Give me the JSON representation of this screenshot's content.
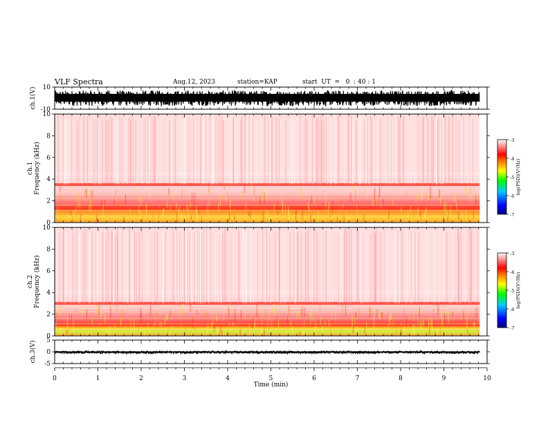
{
  "header": {
    "title": "VLF Spectra",
    "date": "Aug.12, 2023",
    "station": "station=KAP",
    "start": "start  UT  =   0  : 40 : 1"
  },
  "chart_data": [
    {
      "type": "line",
      "panel": "ch1-waveform",
      "ylabel": "ch.1(V)",
      "ylim": [
        -10,
        10
      ],
      "yticks": [
        "10",
        "-10"
      ],
      "xlim": [
        0,
        10
      ],
      "data_xrange": [
        0,
        9.83
      ],
      "amplitude_range": [
        -7,
        7
      ],
      "series_color": "#000000"
    },
    {
      "type": "heatmap",
      "panel": "ch1-spectrogram",
      "ylabel": "ch.1",
      "ylabel2": "Frequency (kHz)",
      "ylim": [
        0,
        10
      ],
      "yticks": [
        "0",
        "2",
        "4",
        "6",
        "8",
        "10"
      ],
      "xlim": [
        0,
        10
      ],
      "data_xrange": [
        0,
        9.83
      ],
      "band_top_khz": 3.5,
      "colorbar": {
        "label": "log(PSD)(V²/Hz)",
        "range": [
          -7,
          -3
        ],
        "ticks": [
          "-3",
          "-4",
          "-5",
          "-6",
          "-7"
        ],
        "colors": [
          "#000080",
          "#0000ff",
          "#00c8ff",
          "#00ff00",
          "#ffff00",
          "#ff8000",
          "#ff0000",
          "#ffffff"
        ]
      }
    },
    {
      "type": "heatmap",
      "panel": "ch2-spectrogram",
      "ylabel": "ch.2",
      "ylabel2": "Frequency (kHz)",
      "ylim": [
        0,
        10
      ],
      "yticks": [
        "0",
        "2",
        "4",
        "6",
        "8",
        "10"
      ],
      "xlim": [
        0,
        10
      ],
      "data_xrange": [
        0,
        9.83
      ],
      "band_top_khz": 3.0,
      "colorbar": {
        "label": "log(PSD)(V²/Hz)",
        "range": [
          -7,
          -3
        ],
        "ticks": [
          "-3",
          "-4",
          "-5",
          "-6",
          "-7"
        ],
        "colors": [
          "#000080",
          "#0000ff",
          "#00c8ff",
          "#00ff00",
          "#ffff00",
          "#ff8000",
          "#ff0000",
          "#ffffff"
        ]
      }
    },
    {
      "type": "line",
      "panel": "ch3-waveform",
      "ylabel": "ch.3(V)",
      "ylim": [
        -5,
        5
      ],
      "yticks": [
        "5",
        "0",
        "-5"
      ],
      "xlim": [
        0,
        10
      ],
      "data_xrange": [
        0,
        9.83
      ],
      "amplitude_range": [
        -0.7,
        0.3
      ],
      "series_color": "#000000",
      "xlabel": "Time (min)",
      "xticks": [
        "0",
        "1",
        "2",
        "3",
        "4",
        "5",
        "6",
        "7",
        "8",
        "9",
        "10"
      ]
    }
  ]
}
